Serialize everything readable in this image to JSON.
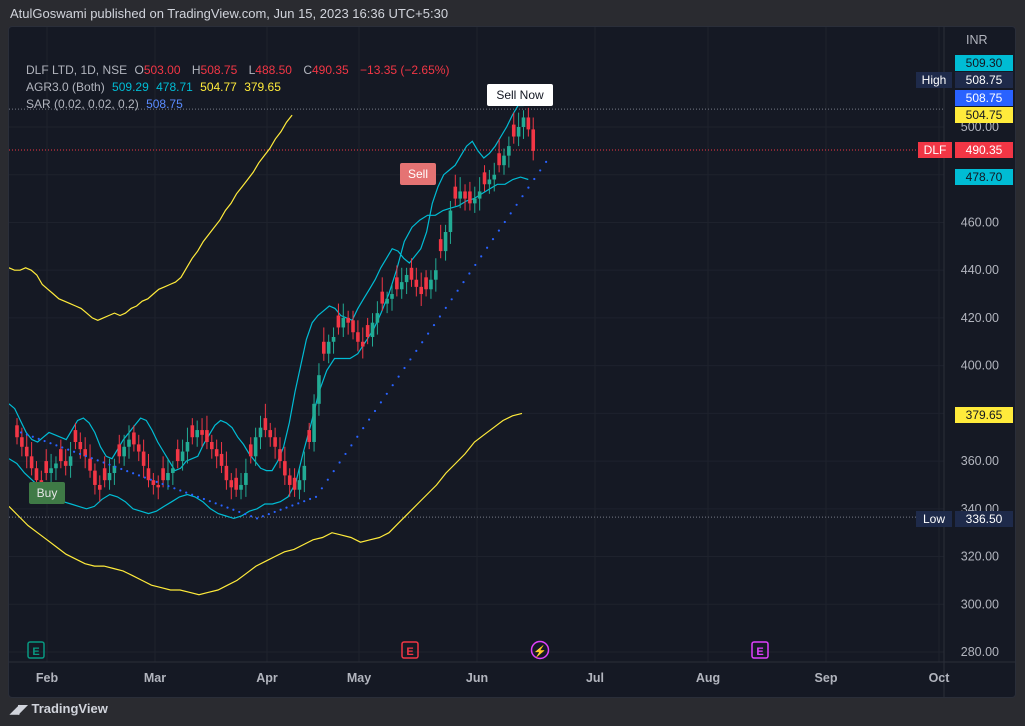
{
  "header": {
    "publisher": "AtulGoswami published on TradingView.com, Jun 15, 2023 16:36 UTC+5:30"
  },
  "footer": {
    "brand": "TradingView"
  },
  "legend": {
    "symbol": "DLF LTD, 1D, NSE",
    "o_label": "O",
    "o": "503.00",
    "h_label": "H",
    "h": "508.75",
    "l_label": "L",
    "l": "488.50",
    "c_label": "C",
    "c": "490.35",
    "change": "−13.35 (−2.65%)",
    "agr_name": "AGR3.0 (Both)",
    "agr_values": [
      "509.29",
      "478.71",
      "504.77",
      "379.65"
    ],
    "sar_name": "SAR (0.02, 0.02, 0.2)",
    "sar_value": "508.75"
  },
  "colors": {
    "background": "#151924",
    "up": "#22ab94",
    "down": "#f23645",
    "band": "#00bcd4",
    "yellow_line": "#ffeb3b",
    "sar": "#2962ff",
    "grid": "#1e222d",
    "text": "#b2b5be"
  },
  "chart_data": {
    "type": "candlestick",
    "symbol": "DLF",
    "currency": "INR",
    "ylim": [
      276,
      523
    ],
    "y_ticks": [
      "280.00",
      "300.00",
      "320.00",
      "340.00",
      "360.00",
      "380.00",
      "400.00",
      "420.00",
      "440.00",
      "460.00",
      "480.00",
      "500.00"
    ],
    "x_ticks": [
      "Feb",
      "Mar",
      "Apr",
      "May",
      "Jun",
      "Jul",
      "Aug",
      "Sep",
      "Oct"
    ],
    "x_tick_dates": [
      "2023-02-01",
      "2023-03-01",
      "2023-04-01",
      "2023-05-01",
      "2023-06-01",
      "2023-07-01",
      "2023-08-01",
      "2023-09-01",
      "2023-10-01"
    ],
    "high_value": "508.75",
    "low_value": "336.50",
    "series_close": [
      370,
      366,
      362,
      357,
      352,
      350,
      355,
      357,
      359,
      360,
      358,
      362,
      368,
      365,
      362,
      356,
      350,
      348,
      352,
      355,
      358,
      362,
      366,
      369,
      367,
      364,
      358,
      352,
      350,
      349,
      352,
      355,
      357,
      360,
      364,
      368,
      370,
      373,
      371,
      368,
      365,
      362,
      358,
      352,
      349,
      348,
      350,
      355,
      362,
      370,
      374,
      373,
      370,
      366,
      360,
      354,
      350,
      348,
      352,
      358,
      368,
      384,
      396,
      405,
      410,
      412,
      416,
      420,
      418,
      414,
      410,
      408,
      412,
      418,
      422,
      426,
      428,
      430,
      432,
      435,
      438,
      436,
      433,
      430,
      432,
      436,
      440,
      448,
      456,
      465,
      470,
      473,
      470,
      468,
      470,
      473,
      476,
      478,
      480,
      484,
      488,
      492,
      496,
      500,
      504,
      499,
      490
    ],
    "upper_band": [
      384,
      382,
      377,
      372,
      369,
      368,
      370,
      372,
      371,
      370,
      369,
      373,
      377,
      378,
      376,
      372,
      366,
      362,
      361,
      365,
      369,
      372,
      375,
      378,
      377,
      373,
      368,
      364,
      360,
      356,
      357,
      360,
      361,
      362,
      367,
      371,
      375,
      377,
      376,
      374,
      370,
      367,
      363,
      360,
      357,
      356,
      356,
      360,
      366,
      376,
      389,
      400,
      411,
      418,
      421,
      423,
      425,
      424,
      421,
      420,
      419,
      424,
      428,
      432,
      436,
      441,
      445,
      449,
      448,
      445,
      443,
      446,
      449,
      456,
      468,
      475,
      480,
      482,
      484,
      488,
      492,
      494,
      490,
      487,
      489,
      492,
      496,
      500,
      505,
      509,
      509
    ],
    "lower_band": [
      361,
      359,
      355,
      352,
      349,
      347,
      345,
      343,
      342,
      341,
      340,
      341,
      344,
      346,
      345,
      343,
      340,
      339,
      338,
      339,
      341,
      343,
      345,
      346,
      345,
      343,
      340,
      338,
      337,
      336,
      337,
      339,
      340,
      342,
      342,
      343,
      345,
      351,
      364,
      376,
      389,
      398,
      403,
      403,
      403,
      405,
      410,
      415,
      422,
      430,
      440,
      452,
      458,
      461,
      463,
      463,
      465,
      466,
      467,
      469,
      470,
      472,
      474,
      476,
      476,
      478,
      479,
      478
    ],
    "yellow_upper": [
      441,
      440,
      440,
      441,
      440,
      438,
      434,
      432,
      430,
      428,
      427,
      426,
      425,
      424,
      422,
      420,
      419,
      420,
      421,
      422,
      421,
      422,
      424,
      425,
      427,
      428,
      430,
      432,
      433,
      434,
      435,
      437,
      441,
      445,
      448,
      452,
      455,
      458,
      461,
      465,
      468,
      472,
      475,
      478,
      481,
      485,
      488,
      491,
      495,
      498,
      502,
      505
    ],
    "yellow_lower": [
      341,
      337,
      333,
      330,
      327,
      324,
      321,
      319,
      317,
      316,
      316,
      315,
      314,
      312,
      310,
      308,
      307,
      306,
      306,
      305,
      304,
      305,
      306,
      308,
      310,
      313,
      316,
      318,
      320,
      322,
      323,
      325,
      327,
      328,
      330,
      329,
      328,
      326,
      327,
      328,
      330,
      334,
      338,
      342,
      346,
      350,
      355,
      359,
      363,
      368,
      371,
      374,
      377,
      379,
      380
    ],
    "sar_dots_count": 90,
    "signals": [
      {
        "label": "Buy",
        "price": 345
      },
      {
        "label": "Sell",
        "price": 481
      },
      {
        "label": "Sell Now",
        "price": 512
      }
    ],
    "price_labels": [
      {
        "text": "509.30",
        "price": 509.3,
        "type": "band"
      },
      {
        "text": "High",
        "value": "508.75",
        "price": 508.75,
        "type": "high"
      },
      {
        "text": "508.75",
        "price": 505.2,
        "type": "sar"
      },
      {
        "text": "504.75",
        "price": 501.0,
        "type": "yellow"
      },
      {
        "text": "DLF",
        "value": "490.35",
        "price": 490.35,
        "type": "last"
      },
      {
        "text": "478.70",
        "price": 478.7,
        "type": "band"
      },
      {
        "text": "379.65",
        "price": 379.65,
        "type": "yellow"
      },
      {
        "text": "Low",
        "value": "336.50",
        "price": 336.5,
        "type": "low"
      }
    ],
    "events": [
      {
        "symbol": "E",
        "color": "#089981",
        "x_month": "Feb"
      },
      {
        "symbol": "E",
        "color": "#f23645",
        "x_month": "May"
      },
      {
        "symbol": "⚡",
        "color": "#e040fb",
        "x_month": "Jun"
      },
      {
        "symbol": "E",
        "color": "#e040fb",
        "x_month": "Aug"
      }
    ]
  }
}
